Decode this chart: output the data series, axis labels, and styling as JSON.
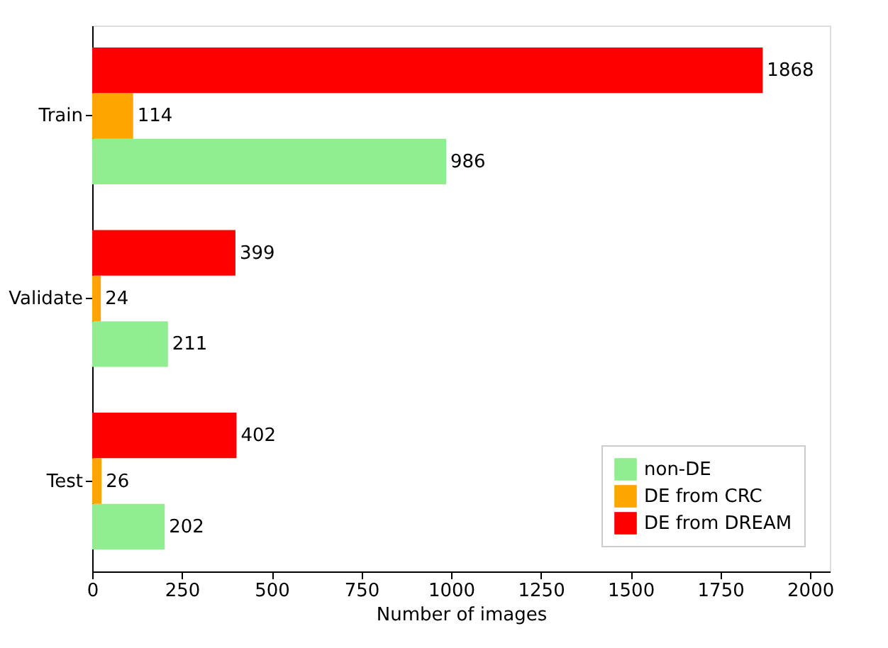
{
  "chart_data": {
    "type": "bar",
    "orientation": "horizontal",
    "xlabel": "Number of images",
    "categories": [
      "Train",
      "Validate",
      "Test"
    ],
    "series": [
      {
        "name": "non-DE",
        "color": "#90ee90",
        "values": [
          986,
          211,
          202
        ]
      },
      {
        "name": "DE from CRC",
        "color": "#ffa500",
        "values": [
          114,
          24,
          26
        ]
      },
      {
        "name": "DE from DREAM",
        "color": "#ff0000",
        "values": [
          1868,
          399,
          402
        ]
      }
    ],
    "xlim": [
      0,
      2055
    ],
    "xticks": [
      0,
      250,
      500,
      750,
      1000,
      1250,
      1500,
      1750,
      2000
    ],
    "data_labels": true,
    "legend": "bottom right",
    "grid": false
  }
}
